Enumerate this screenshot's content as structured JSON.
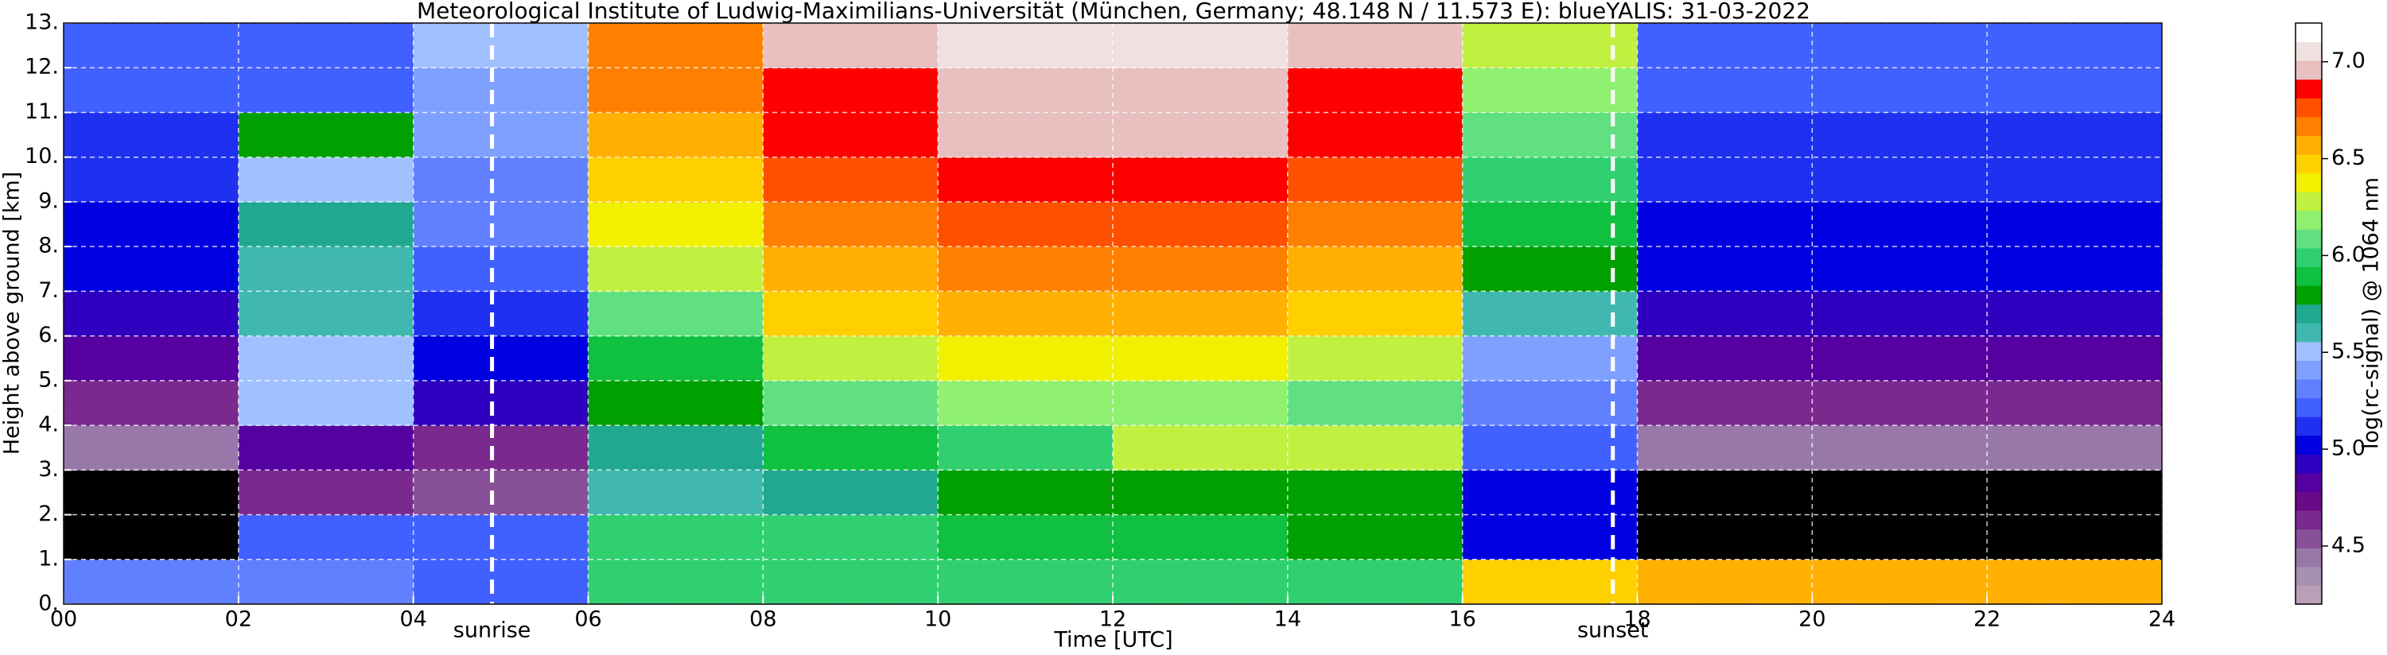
{
  "chart_data": {
    "type": "heatmap",
    "title": "Meteorological Institute of Ludwig-Maximilians-Universität (München, Germany; 48.148 N / 11.573 E):    blueYALIS: 31-03-2022",
    "x_label": "Time [UTC]",
    "y_label": "Height above ground [km]",
    "x": [
      0,
      2,
      4,
      6,
      8,
      10,
      12,
      14,
      16,
      18,
      20,
      22,
      24
    ],
    "y": [
      0,
      1,
      2,
      3,
      4,
      5,
      6,
      7,
      8,
      9,
      10,
      11,
      12,
      13
    ],
    "z": [
      [
        5.3,
        5.3,
        5.2,
        6.0,
        6.0,
        6.0,
        6.0,
        6.0,
        6.5,
        6.6,
        6.6,
        6.6
      ],
      [
        4.1,
        5.2,
        5.2,
        6.0,
        6.0,
        5.9,
        5.9,
        5.8,
        5.0,
        4.1,
        4.1,
        4.1
      ],
      [
        4.1,
        4.6,
        4.5,
        5.6,
        5.7,
        5.8,
        5.8,
        5.8,
        5.0,
        4.1,
        4.1,
        4.1
      ],
      [
        4.4,
        4.8,
        4.6,
        5.7,
        5.9,
        6.0,
        6.3,
        6.3,
        5.2,
        4.4,
        4.4,
        4.4
      ],
      [
        4.6,
        5.5,
        4.9,
        5.8,
        6.1,
        6.2,
        6.2,
        6.1,
        5.3,
        4.6,
        4.6,
        4.6
      ],
      [
        4.8,
        5.5,
        5.0,
        5.9,
        6.3,
        6.4,
        6.4,
        6.3,
        5.4,
        4.8,
        4.8,
        4.8
      ],
      [
        4.9,
        5.6,
        5.1,
        6.1,
        6.5,
        6.6,
        6.6,
        6.5,
        5.6,
        4.9,
        4.9,
        4.9
      ],
      [
        5.0,
        5.6,
        5.2,
        6.3,
        6.6,
        6.7,
        6.7,
        6.6,
        5.8,
        5.0,
        5.0,
        5.0
      ],
      [
        5.0,
        5.7,
        5.3,
        6.4,
        6.7,
        6.8,
        6.8,
        6.7,
        5.9,
        5.0,
        5.0,
        5.0
      ],
      [
        5.1,
        5.5,
        5.3,
        6.5,
        6.8,
        6.9,
        6.9,
        6.8,
        6.0,
        5.1,
        5.1,
        5.1
      ],
      [
        5.1,
        5.8,
        5.4,
        6.6,
        6.9,
        7.0,
        7.0,
        6.9,
        6.1,
        5.1,
        5.1,
        5.1
      ],
      [
        5.2,
        5.2,
        5.4,
        6.7,
        6.9,
        7.0,
        7.0,
        6.9,
        6.2,
        5.2,
        5.2,
        5.2
      ],
      [
        5.2,
        5.2,
        5.5,
        6.7,
        7.0,
        7.1,
        7.1,
        7.0,
        6.3,
        5.2,
        5.2,
        5.2
      ]
    ],
    "xlim": [
      0,
      24
    ],
    "ylim": [
      0,
      13
    ],
    "xticks": [
      {
        "value": 0,
        "label": "00"
      },
      {
        "value": 2,
        "label": "02"
      },
      {
        "value": 4,
        "label": "04"
      },
      {
        "value": 6,
        "label": "06"
      },
      {
        "value": 8,
        "label": "08"
      },
      {
        "value": 10,
        "label": "10"
      },
      {
        "value": 12,
        "label": "12"
      },
      {
        "value": 14,
        "label": "14"
      },
      {
        "value": 16,
        "label": "16"
      },
      {
        "value": 18,
        "label": "18"
      },
      {
        "value": 20,
        "label": "20"
      },
      {
        "value": 22,
        "label": "22"
      },
      {
        "value": 24,
        "label": "24"
      }
    ],
    "yticks": [
      {
        "value": 0,
        "label": "0."
      },
      {
        "value": 1,
        "label": "1."
      },
      {
        "value": 2,
        "label": "2."
      },
      {
        "value": 3,
        "label": "3."
      },
      {
        "value": 4,
        "label": "4."
      },
      {
        "value": 5,
        "label": "5."
      },
      {
        "value": 6,
        "label": "6."
      },
      {
        "value": 7,
        "label": "7."
      },
      {
        "value": 8,
        "label": "8."
      },
      {
        "value": 9,
        "label": "9."
      },
      {
        "value": 10,
        "label": "10."
      },
      {
        "value": 11,
        "label": "11."
      },
      {
        "value": 12,
        "label": "12."
      },
      {
        "value": 13,
        "label": "13."
      }
    ],
    "grid": true,
    "annotations": [
      {
        "text": "sunrise",
        "x": 4.9
      },
      {
        "text": "sunset",
        "x": 17.72
      }
    ],
    "colorbar": {
      "label": "log(rc-signal) @ 1064 nm",
      "zlim": [
        4.2,
        7.2
      ],
      "zticks": [
        4.5,
        {
          "value": 5,
          "label": "5.0"
        },
        5.5,
        {
          "value": 6,
          "label": "6.0"
        },
        6.5,
        {
          "value": 7,
          "label": "7.0"
        }
      ],
      "under_color": "#000000",
      "colors": [
        "#b8a0b8",
        "#a890b0",
        "#9878a8",
        "#885098",
        "#7a2a8e",
        "#6a0a88",
        "#5500a0",
        "#3000c0",
        "#0000e0",
        "#2030f0",
        "#4060ff",
        "#6080ff",
        "#80a0ff",
        "#a0c0ff",
        "#40b8b0",
        "#20a890",
        "#00a000",
        "#10c040",
        "#30d070",
        "#60e080",
        "#90f070",
        "#c0f040",
        "#f0f000",
        "#ffd000",
        "#ffb000",
        "#ff8000",
        "#ff5000",
        "#ff0000",
        "#e8c0c0",
        "#f0e0e0",
        "#ffffff"
      ]
    }
  }
}
